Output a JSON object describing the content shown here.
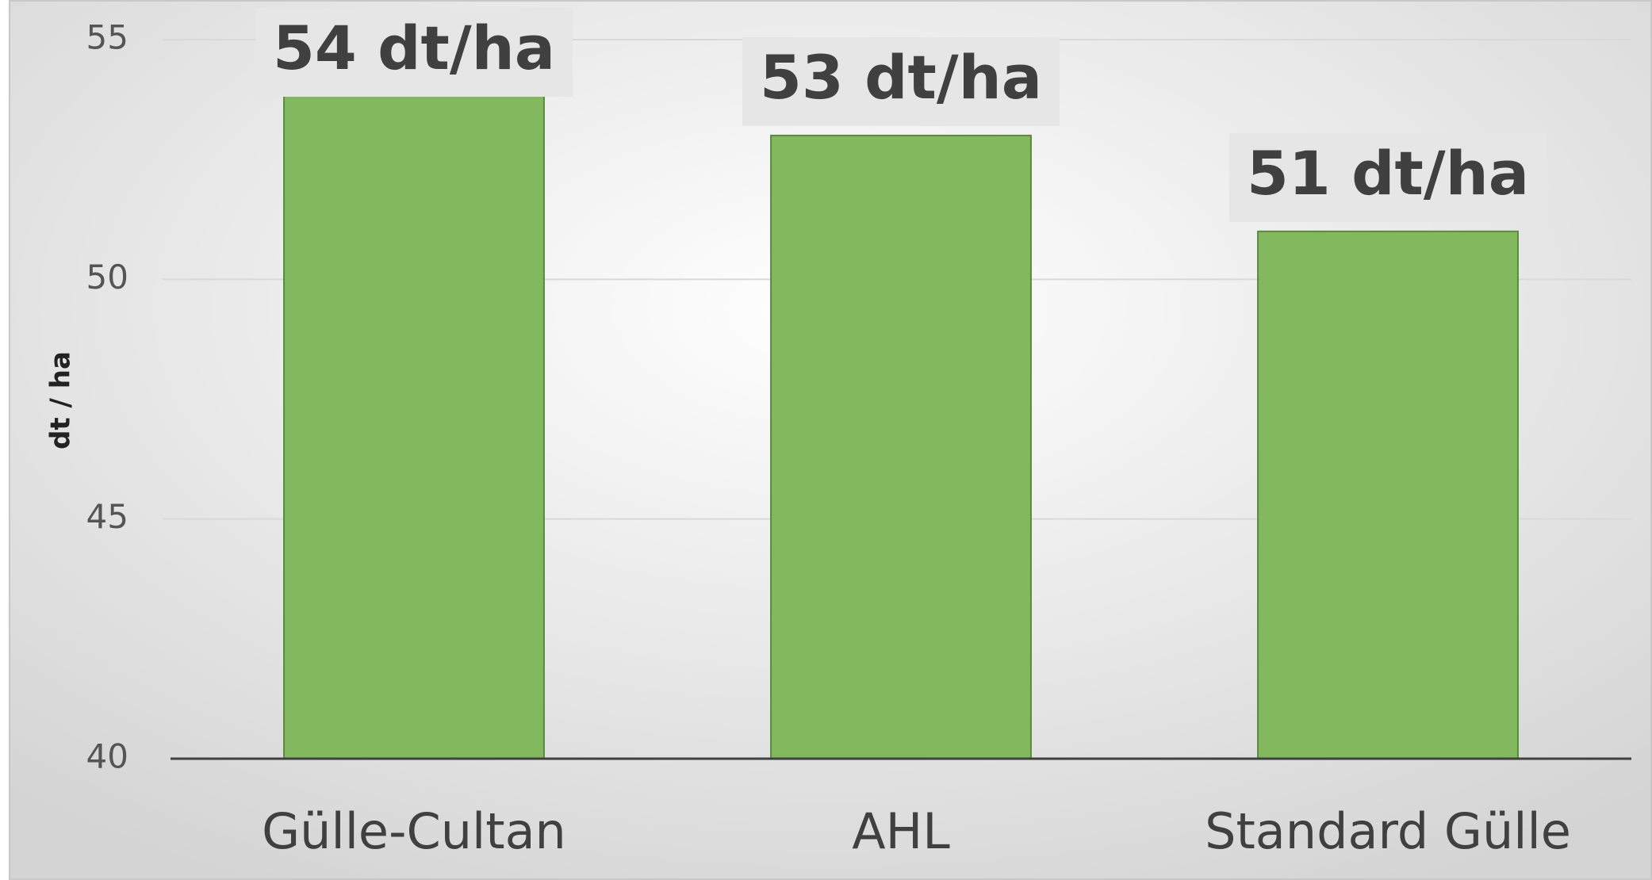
{
  "chart_data": {
    "type": "bar",
    "y_axis_label": "dt / ha",
    "categories": [
      "Gülle-Cultan",
      "AHL",
      "Standard Gülle"
    ],
    "values": [
      54,
      53,
      51
    ],
    "value_labels": [
      "54 dt/ha",
      "53 dt/ha",
      "51 dt/ha"
    ],
    "color": "#82b85e",
    "ylim": [
      40,
      55
    ],
    "yticks": [
      40,
      45,
      50,
      55
    ],
    "grid": true
  }
}
